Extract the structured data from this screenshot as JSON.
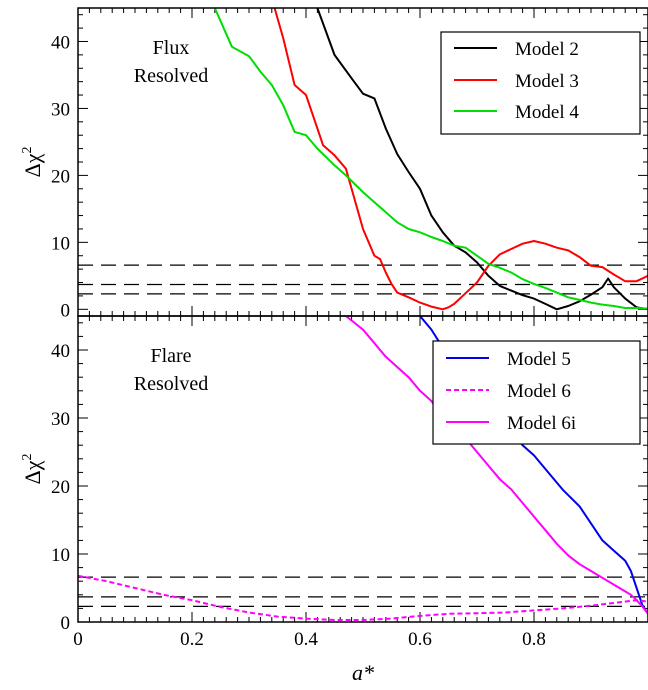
{
  "chart_data": [
    {
      "type": "line",
      "annotation": [
        "Flux",
        "Resolved"
      ],
      "xlim": [
        0,
        1
      ],
      "ylim": [
        -1,
        45
      ],
      "ylabel_main": "Δχ",
      "ylabel_sup": "2",
      "yticks": [
        0,
        10,
        20,
        30,
        40
      ],
      "legend_position": "top-right",
      "hlines": [
        2.3,
        3.7,
        6.6
      ],
      "series": [
        {
          "name": "Model 2",
          "color": "#000000",
          "dash": "solid",
          "x": [
            0.42,
            0.45,
            0.48,
            0.5,
            0.52,
            0.54,
            0.56,
            0.58,
            0.6,
            0.62,
            0.64,
            0.66,
            0.68,
            0.7,
            0.72,
            0.74,
            0.76,
            0.78,
            0.8,
            0.82,
            0.84,
            0.86,
            0.88,
            0.9,
            0.92,
            0.93,
            0.94,
            0.96,
            0.98,
            1.0
          ],
          "y": [
            45,
            38,
            34.5,
            32.2,
            31.5,
            27,
            23.2,
            20.5,
            18,
            14,
            11.5,
            9.5,
            8.5,
            7,
            5,
            3.5,
            2.8,
            2.1,
            1.6,
            0.8,
            0,
            0.5,
            1.2,
            2.2,
            3.3,
            4.6,
            3.3,
            1.6,
            0.3,
            0
          ]
        },
        {
          "name": "Model 3",
          "color": "#ff0000",
          "dash": "solid",
          "x": [
            0.345,
            0.36,
            0.38,
            0.4,
            0.42,
            0.43,
            0.45,
            0.47,
            0.49,
            0.5,
            0.51,
            0.52,
            0.53,
            0.54,
            0.55,
            0.56,
            0.58,
            0.6,
            0.62,
            0.64,
            0.65,
            0.66,
            0.68,
            0.7,
            0.72,
            0.74,
            0.76,
            0.78,
            0.8,
            0.82,
            0.84,
            0.86,
            0.88,
            0.9,
            0.92,
            0.94,
            0.96,
            0.98,
            1.0
          ],
          "y": [
            45,
            40.5,
            33.5,
            32,
            27,
            24.5,
            23,
            21,
            15,
            12,
            10,
            8,
            7.5,
            5.5,
            3.8,
            2.5,
            1.8,
            1.0,
            0.4,
            0,
            0.3,
            0.8,
            2.4,
            4,
            6.5,
            8.2,
            9,
            9.8,
            10.2,
            9.8,
            9.2,
            8.8,
            7.8,
            6.5,
            6.3,
            5.2,
            4.2,
            4.2,
            5
          ]
        },
        {
          "name": "Model 4",
          "color": "#00dd00",
          "dash": "solid",
          "x": [
            0.24,
            0.27,
            0.3,
            0.32,
            0.34,
            0.36,
            0.38,
            0.4,
            0.42,
            0.45,
            0.47,
            0.5,
            0.52,
            0.54,
            0.56,
            0.58,
            0.6,
            0.62,
            0.64,
            0.66,
            0.68,
            0.7,
            0.72,
            0.74,
            0.76,
            0.78,
            0.8,
            0.82,
            0.84,
            0.86,
            0.88,
            0.9,
            0.92,
            0.94,
            0.96,
            0.98,
            1.0
          ],
          "y": [
            45,
            39.2,
            37.8,
            35.5,
            33.5,
            30.5,
            26.5,
            26,
            24,
            21.5,
            20,
            17.5,
            16,
            14.5,
            13,
            12,
            11.5,
            10.8,
            10.2,
            9.5,
            9.2,
            8,
            6.8,
            6.2,
            5.5,
            4.5,
            3.8,
            3.2,
            2.5,
            1.8,
            1.4,
            1.0,
            0.7,
            0.5,
            0.2,
            0.2,
            0.1
          ]
        }
      ]
    },
    {
      "type": "line",
      "annotation": [
        "Flare",
        "Resolved"
      ],
      "xlim": [
        0,
        1
      ],
      "xlabel": "a*",
      "xticks": [
        "0",
        "0.2",
        "0.4",
        "0.6",
        "0.8"
      ],
      "ylim": [
        0,
        45
      ],
      "ylabel_main": "Δχ",
      "ylabel_sup": "2",
      "yticks": [
        0,
        10,
        20,
        30,
        40
      ],
      "legend_position": "top-right",
      "hlines": [
        2.3,
        3.7,
        6.6
      ],
      "series": [
        {
          "name": "Model 5",
          "color": "#0000ee",
          "dash": "solid",
          "x": [
            0.6,
            0.62,
            0.65,
            0.68,
            0.7,
            0.72,
            0.75,
            0.78,
            0.8,
            0.82,
            0.85,
            0.88,
            0.9,
            0.92,
            0.94,
            0.96,
            0.97,
            0.98,
            0.99,
            1.0
          ],
          "y": [
            45,
            43,
            39,
            36,
            33,
            31,
            29,
            26,
            24.5,
            22.5,
            19.5,
            17,
            14.5,
            12,
            10.5,
            9,
            7.5,
            5,
            2.5,
            1.2
          ]
        },
        {
          "name": "Model 6",
          "color": "#ff00ff",
          "dash": "dashed",
          "x": [
            0.0,
            0.05,
            0.1,
            0.15,
            0.2,
            0.25,
            0.3,
            0.35,
            0.4,
            0.45,
            0.5,
            0.55,
            0.6,
            0.65,
            0.7,
            0.75,
            0.8,
            0.85,
            0.9,
            0.95,
            0.97,
            0.98,
            0.99,
            1.0
          ],
          "y": [
            6.8,
            6.0,
            5.0,
            4.0,
            3.2,
            2.2,
            1.4,
            0.8,
            0.5,
            0.3,
            0.3,
            0.5,
            0.9,
            1.2,
            1.3,
            1.4,
            1.7,
            2.0,
            2.4,
            2.9,
            3.1,
            3.2,
            3.1,
            3.0
          ]
        },
        {
          "name": "Model 6i",
          "color": "#ff00ff",
          "dash": "solid",
          "x": [
            0.47,
            0.5,
            0.52,
            0.54,
            0.56,
            0.58,
            0.6,
            0.62,
            0.64,
            0.66,
            0.68,
            0.7,
            0.72,
            0.74,
            0.76,
            0.78,
            0.8,
            0.82,
            0.84,
            0.86,
            0.88,
            0.9,
            0.92,
            0.94,
            0.96,
            0.97,
            0.98,
            0.99,
            1.0
          ],
          "y": [
            45,
            43,
            41,
            39,
            37.5,
            36,
            34,
            32.5,
            30,
            28,
            27,
            25,
            23,
            21,
            19.5,
            17.5,
            15.5,
            13.5,
            11.5,
            9.8,
            8.5,
            7.5,
            6.5,
            5.5,
            4.5,
            4.0,
            3.2,
            2.3,
            1.2
          ]
        }
      ]
    }
  ]
}
